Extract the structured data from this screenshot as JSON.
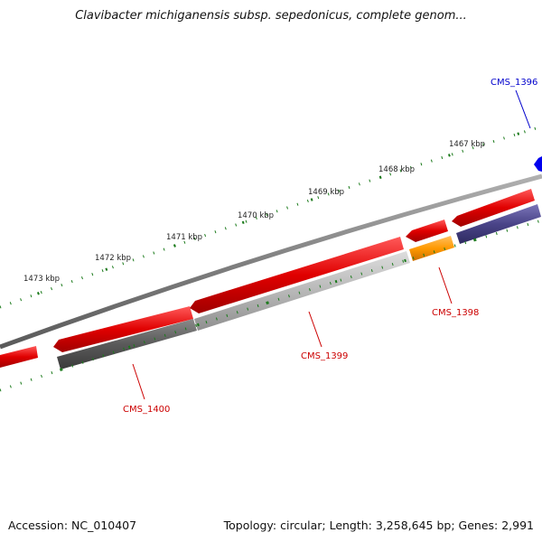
{
  "title": "Clavibacter michiganensis subsp. sepedonicus, complete genom...",
  "footer": {
    "accession": "Accession: NC_010407",
    "summary": "Topology: circular; Length: 3,258,645 bp; Genes: 2,991"
  },
  "colors": {
    "backbone": "#8a8a8a",
    "forward_gene": "#e00000",
    "tick": "#1a7a1a",
    "label_red": "#cc0000",
    "label_blue": "#0000cc",
    "highlight_blue": "#0000ee",
    "gene_orange": "#ff9900",
    "gene_navy": "#4a4488",
    "gene_dark_gray": "#555555",
    "gene_light_gray": "#b8b8b8"
  },
  "ruler_labels": [
    "1467 kbp",
    "1468 kbp",
    "1469 kbp",
    "1470 kbp",
    "1471 kbp",
    "1472 kbp",
    "1473 kbp"
  ],
  "gene_labels": {
    "cms_1396": "CMS_1396",
    "cms_1398": "CMS_1398",
    "cms_1399": "CMS_1399",
    "cms_1400": "CMS_1400"
  }
}
